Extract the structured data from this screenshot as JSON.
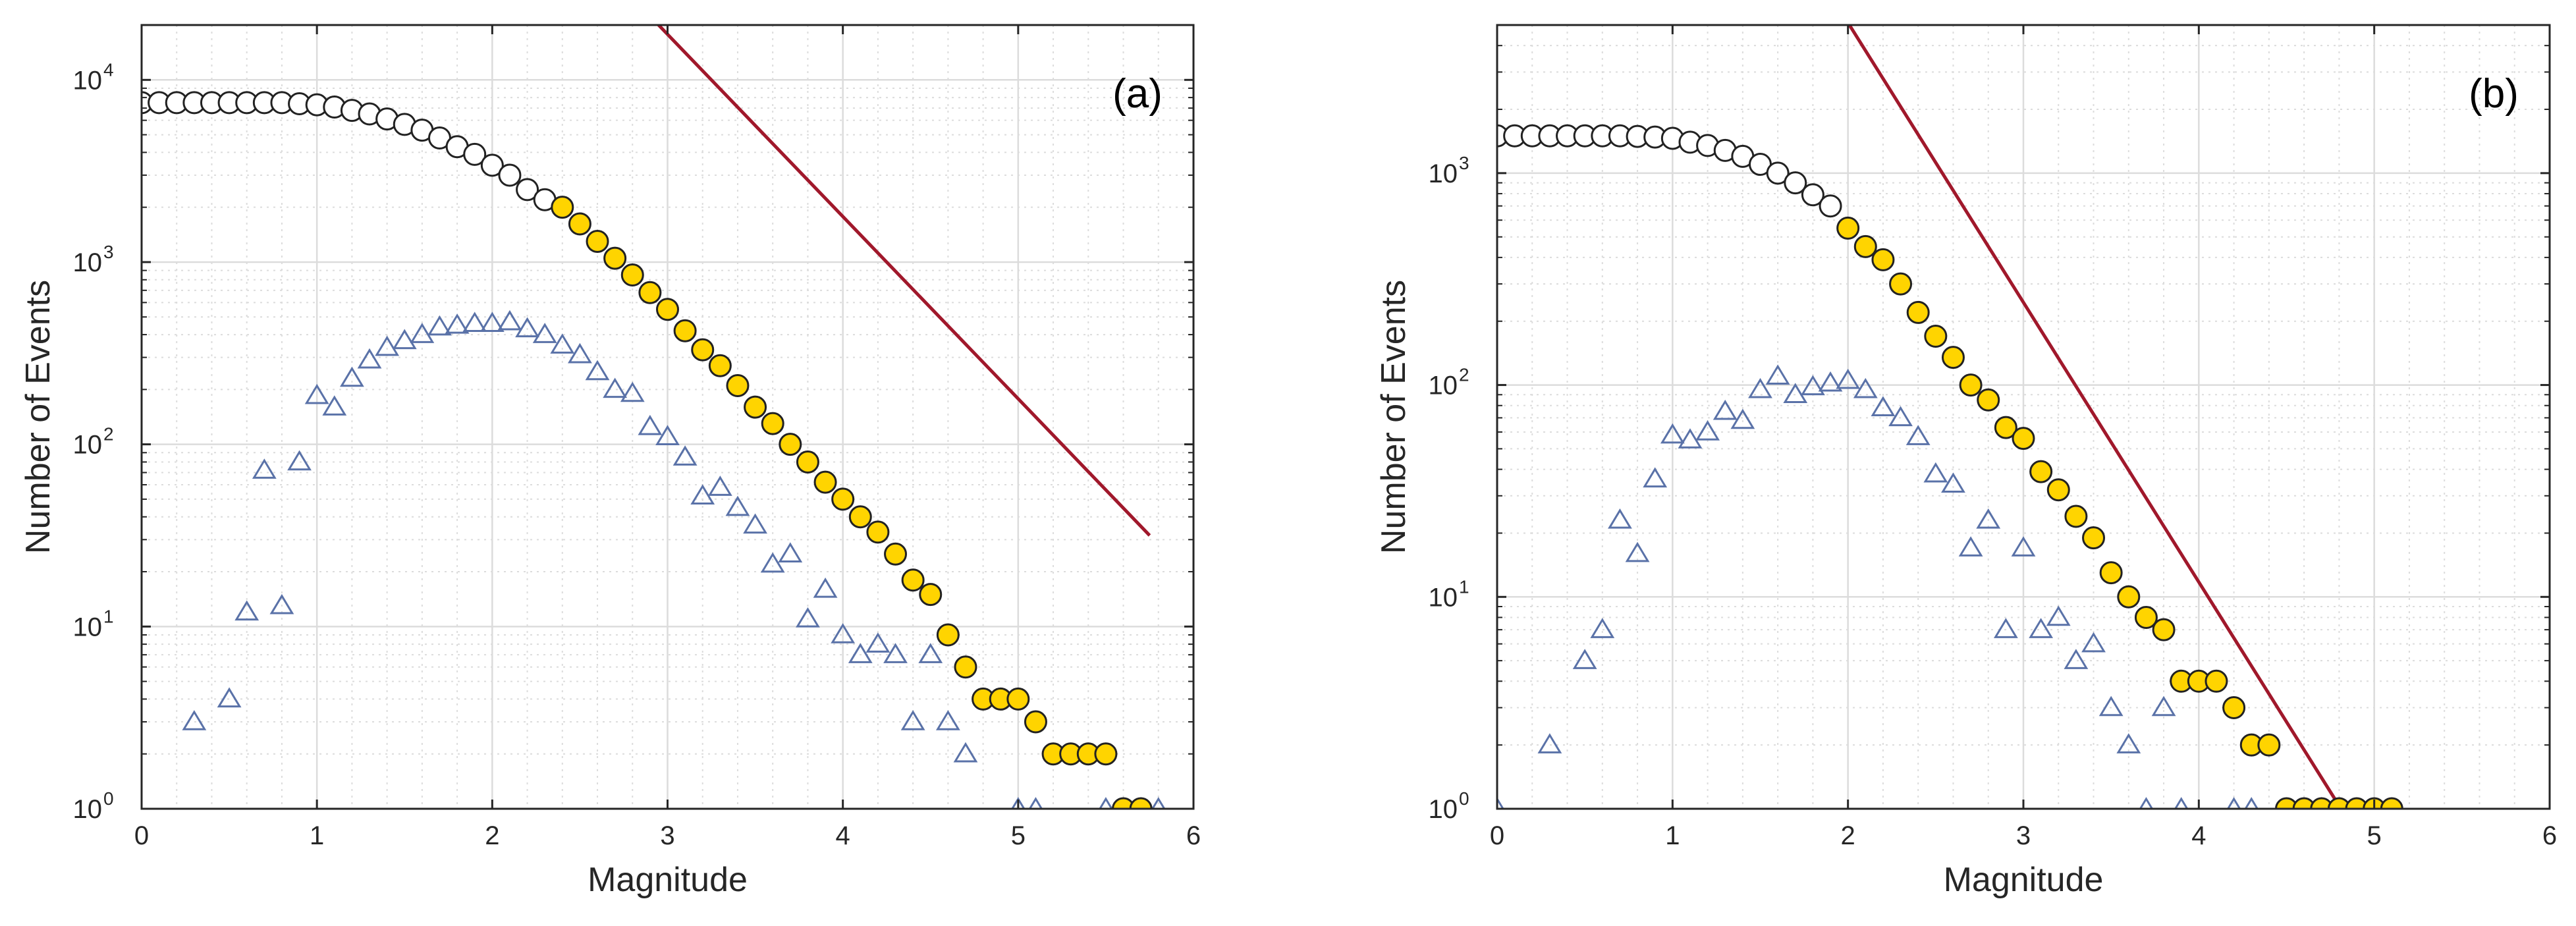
{
  "colors": {
    "fit_line": "#a0182b",
    "cumulative_fill": "#ffffff",
    "cumulative_above_fill": "#ffd400",
    "marker_edge": "#222222",
    "noncumulative_edge": "#5a72a8",
    "grid_major": "#dcdcdc",
    "grid_minor": "#dcdcdc",
    "axis": "#262626"
  },
  "chart_data": [
    {
      "type": "scatter",
      "panel_label": "(a)",
      "xlabel": "Magnitude",
      "ylabel": "Number of Events",
      "xlim": [
        0,
        6
      ],
      "ylim": [
        1,
        20000
      ],
      "yscale": "log",
      "x_ticks": [
        "0",
        "1",
        "2",
        "3",
        "4",
        "5",
        "6"
      ],
      "y_ticks": [
        {
          "base": "10",
          "exp": "0"
        },
        {
          "base": "10",
          "exp": "1"
        },
        {
          "base": "10",
          "exp": "2"
        },
        {
          "base": "10",
          "exp": "3"
        },
        {
          "base": "10",
          "exp": "4"
        }
      ],
      "mc": 2.4,
      "cumulative": {
        "x": [
          0.0,
          0.1,
          0.2,
          0.3,
          0.4,
          0.5,
          0.6,
          0.7,
          0.8,
          0.9,
          1.0,
          1.1,
          1.2,
          1.3,
          1.4,
          1.5,
          1.6,
          1.7,
          1.8,
          1.9,
          2.0,
          2.1,
          2.2,
          2.3,
          2.4,
          2.5,
          2.6,
          2.7,
          2.8,
          2.9,
          3.0,
          3.1,
          3.2,
          3.3,
          3.4,
          3.5,
          3.6,
          3.7,
          3.8,
          3.9,
          4.0,
          4.1,
          4.2,
          4.3,
          4.4,
          4.5,
          4.6,
          4.7,
          4.8,
          4.9,
          5.0,
          5.1,
          5.2,
          5.3,
          5.4,
          5.5,
          5.6,
          5.7
        ],
        "y": [
          7500,
          7500,
          7500,
          7500,
          7500,
          7500,
          7500,
          7500,
          7500,
          7400,
          7300,
          7100,
          6800,
          6500,
          6100,
          5700,
          5300,
          4800,
          4300,
          3900,
          3400,
          3000,
          2500,
          2200,
          2000,
          1620,
          1300,
          1050,
          850,
          680,
          550,
          420,
          330,
          270,
          210,
          160,
          130,
          100,
          80,
          62,
          50,
          40,
          33,
          25,
          18,
          15,
          9,
          6,
          4,
          4,
          4,
          3,
          2,
          2,
          2,
          2,
          1,
          1
        ]
      },
      "noncumulative": {
        "x": [
          0.3,
          0.5,
          0.6,
          0.7,
          0.8,
          0.9,
          1.0,
          1.1,
          1.2,
          1.3,
          1.4,
          1.5,
          1.6,
          1.7,
          1.8,
          1.9,
          2.0,
          2.1,
          2.2,
          2.3,
          2.4,
          2.5,
          2.6,
          2.7,
          2.8,
          2.9,
          3.0,
          3.1,
          3.2,
          3.3,
          3.4,
          3.5,
          3.6,
          3.7,
          3.8,
          3.9,
          4.0,
          4.1,
          4.2,
          4.3,
          4.4,
          4.5,
          4.6,
          4.7,
          5.0,
          5.1,
          5.5,
          5.6,
          5.7,
          5.8
        ],
        "y": [
          3,
          4,
          12,
          72,
          13,
          80,
          185,
          160,
          230,
          290,
          340,
          370,
          400,
          440,
          450,
          460,
          460,
          470,
          430,
          400,
          350,
          310,
          250,
          200,
          190,
          125,
          110,
          85,
          52,
          58,
          45,
          36,
          22,
          25,
          11,
          16,
          9,
          7,
          8,
          7,
          3,
          7,
          3,
          2,
          1,
          1,
          1,
          1,
          1,
          1
        ]
      },
      "fit_line": {
        "a": 7.25,
        "b": 1.0,
        "x_range": [
          1.4,
          5.75
        ]
      }
    },
    {
      "type": "scatter",
      "panel_label": "(b)",
      "xlabel": "Magnitude",
      "ylabel": "Number of Events",
      "xlim": [
        0,
        6
      ],
      "ylim": [
        1,
        5000
      ],
      "yscale": "log",
      "x_ticks": [
        "0",
        "1",
        "2",
        "3",
        "4",
        "5",
        "6"
      ],
      "y_ticks": [
        {
          "base": "10",
          "exp": "0"
        },
        {
          "base": "10",
          "exp": "1"
        },
        {
          "base": "10",
          "exp": "2"
        },
        {
          "base": "10",
          "exp": "3"
        }
      ],
      "mc": 2.0,
      "cumulative": {
        "x": [
          0.0,
          0.1,
          0.2,
          0.3,
          0.4,
          0.5,
          0.6,
          0.7,
          0.8,
          0.9,
          1.0,
          1.1,
          1.2,
          1.3,
          1.4,
          1.5,
          1.6,
          1.7,
          1.8,
          1.9,
          2.0,
          2.1,
          2.2,
          2.3,
          2.4,
          2.5,
          2.6,
          2.7,
          2.8,
          2.9,
          3.0,
          3.1,
          3.2,
          3.3,
          3.4,
          3.5,
          3.6,
          3.7,
          3.8,
          3.9,
          4.0,
          4.1,
          4.2,
          4.3,
          4.4,
          4.5,
          4.6,
          4.7,
          4.8,
          4.9,
          5.0,
          5.1
        ],
        "y": [
          1500,
          1500,
          1500,
          1500,
          1500,
          1500,
          1500,
          1500,
          1490,
          1480,
          1460,
          1400,
          1350,
          1280,
          1200,
          1100,
          1000,
          900,
          790,
          700,
          550,
          450,
          390,
          300,
          220,
          170,
          135,
          100,
          85,
          63,
          56,
          39,
          32,
          24,
          19,
          13,
          10,
          8,
          7,
          4,
          4,
          4,
          3,
          2,
          2,
          1,
          1,
          1,
          1,
          1,
          1,
          1
        ]
      },
      "noncumulative": {
        "x": [
          0.0,
          0.3,
          0.5,
          0.6,
          0.7,
          0.8,
          0.9,
          1.0,
          1.1,
          1.2,
          1.3,
          1.4,
          1.5,
          1.6,
          1.7,
          1.8,
          1.9,
          2.0,
          2.1,
          2.2,
          2.3,
          2.4,
          2.5,
          2.6,
          2.7,
          2.8,
          2.9,
          3.0,
          3.1,
          3.2,
          3.3,
          3.4,
          3.5,
          3.6,
          3.7,
          3.8,
          3.9,
          4.2,
          4.3,
          4.7
        ],
        "y": [
          1,
          2,
          5,
          7,
          23,
          16,
          36,
          58,
          55,
          60,
          75,
          68,
          95,
          110,
          90,
          98,
          102,
          105,
          95,
          78,
          70,
          57,
          38,
          34,
          17,
          23,
          7,
          17,
          7,
          8,
          5,
          6,
          3,
          2,
          1,
          3,
          1,
          1,
          1,
          1
        ]
      },
      "fit_line": {
        "a": 6.35,
        "b": 1.32,
        "x_range": [
          1.0,
          4.8
        ]
      }
    }
  ]
}
